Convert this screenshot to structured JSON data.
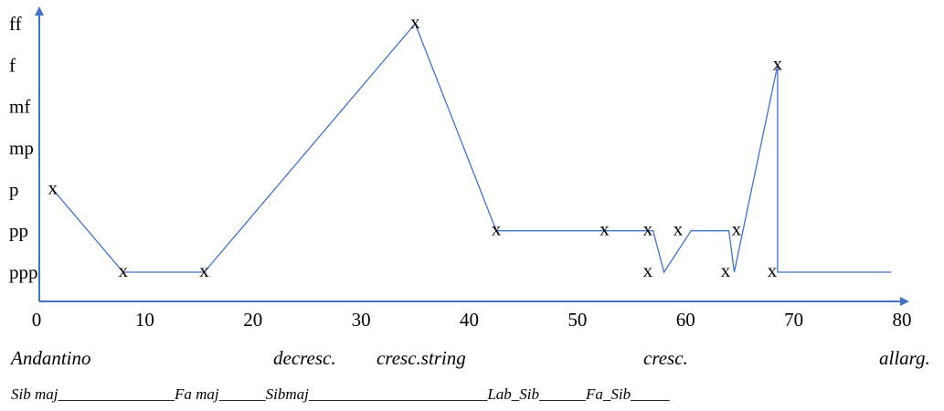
{
  "chart_data": {
    "type": "line",
    "title": "",
    "xlabel": "",
    "ylabel": "",
    "xlim": [
      0,
      80
    ],
    "x_ticks": [
      "0",
      "10",
      "20",
      "30",
      "40",
      "50",
      "60",
      "70",
      "80"
    ],
    "y_levels": [
      "ppp",
      "pp",
      "p",
      "mp",
      "mf",
      "f",
      "ff"
    ],
    "grid": false,
    "legend": "none",
    "line_color": "#4472c4",
    "axis_color": "#4472c4",
    "series": [
      {
        "points": [
          {
            "x": 1.5,
            "y": "p"
          },
          {
            "x": 8,
            "y": "ppp"
          },
          {
            "x": 15.5,
            "y": "ppp"
          },
          {
            "x": 35,
            "y": "ff"
          },
          {
            "x": 42.5,
            "y": "pp"
          },
          {
            "x": 53,
            "y": "pp"
          },
          {
            "x": 57,
            "y": "pp"
          },
          {
            "x": 58,
            "y": "ppp"
          },
          {
            "x": 60.5,
            "y": "pp"
          },
          {
            "x": 64,
            "y": "pp"
          },
          {
            "x": 64.5,
            "y": "ppp"
          },
          {
            "x": 68.5,
            "y": "f"
          },
          {
            "x": 68.5,
            "y": "ppp"
          },
          {
            "x": 79,
            "y": "ppp"
          }
        ]
      }
    ],
    "markers": [
      {
        "x": 1.5,
        "y": "p"
      },
      {
        "x": 8,
        "y": "ppp"
      },
      {
        "x": 15.5,
        "y": "ppp"
      },
      {
        "x": 35,
        "y": "ff"
      },
      {
        "x": 42.5,
        "y": "pp"
      },
      {
        "x": 52.5,
        "y": "pp"
      },
      {
        "x": 56.5,
        "y": "pp"
      },
      {
        "x": 56.5,
        "y": "ppp"
      },
      {
        "x": 59.3,
        "y": "pp"
      },
      {
        "x": 64.7,
        "y": "pp"
      },
      {
        "x": 63.7,
        "y": "ppp"
      },
      {
        "x": 68,
        "y": "ppp"
      },
      {
        "x": 68.5,
        "y": "f"
      }
    ],
    "marker_symbol": "x"
  },
  "annotations": {
    "tempo": [
      "Andantino",
      "decresc.",
      "cresc.string",
      "cresc.",
      "allarg."
    ],
    "keys": "Sib maj_______________Fa maj______Sibmaj_______________________Lab_Sib______Fa_Sib_____"
  }
}
